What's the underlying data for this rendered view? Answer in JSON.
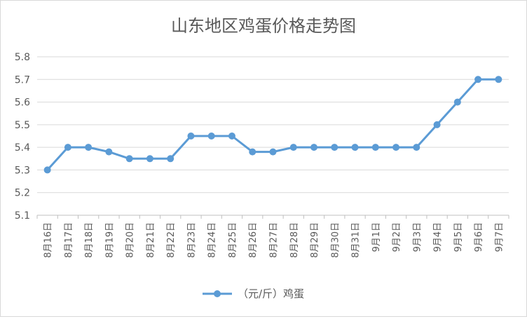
{
  "chart_data": {
    "type": "line",
    "title": "山东地区鸡蛋价格走势图",
    "xlabel": "",
    "ylabel": "",
    "ylim": [
      5.1,
      5.8
    ],
    "yticks": [
      "5.1",
      "5.2",
      "5.3",
      "5.4",
      "5.5",
      "5.6",
      "5.7",
      "5.8"
    ],
    "grid": "horizontal",
    "legend_position": "bottom",
    "categories": [
      "8月16日",
      "8月17日",
      "8月18日",
      "8月19日",
      "8月20日",
      "8月21日",
      "8月22日",
      "8月23日",
      "8月24日",
      "8月25日",
      "8月26日",
      "8月27日",
      "8月28日",
      "8月29日",
      "8月30日",
      "8月31日",
      "9月1日",
      "9月2日",
      "9月3日",
      "9月4日",
      "9月5日",
      "9月6日",
      "9月7日"
    ],
    "series": [
      {
        "name": "（元/斤）鸡蛋",
        "color": "#5b9bd5",
        "values": [
          5.3,
          5.4,
          5.4,
          5.38,
          5.35,
          5.35,
          5.35,
          5.45,
          5.45,
          5.45,
          5.38,
          5.38,
          5.4,
          5.4,
          5.4,
          5.4,
          5.4,
          5.4,
          5.4,
          5.5,
          5.6,
          5.7,
          5.7
        ]
      }
    ]
  }
}
